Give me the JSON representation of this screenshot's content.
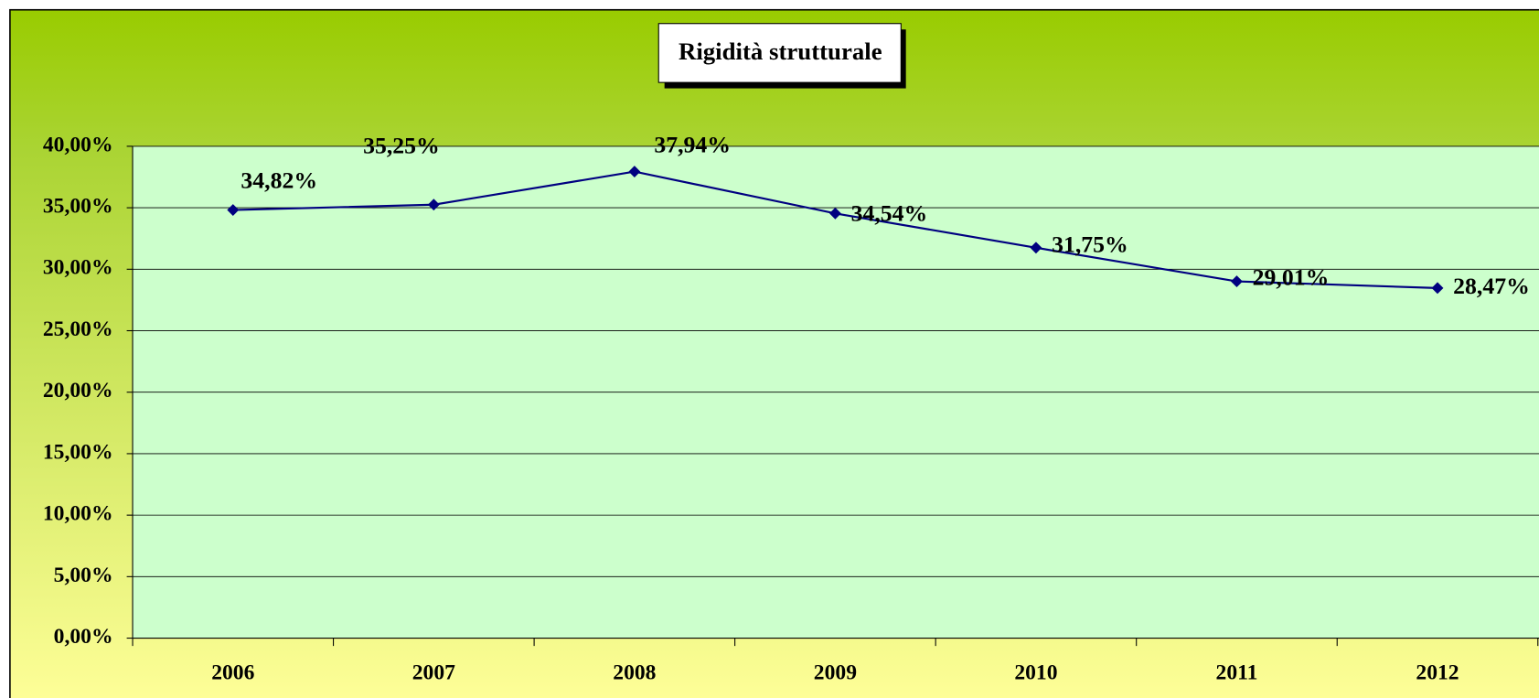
{
  "chart_data": {
    "type": "line",
    "title": "Rigidità strutturale",
    "categories": [
      "2006",
      "2007",
      "2008",
      "2009",
      "2010",
      "2011",
      "2012"
    ],
    "series": [
      {
        "name": "Rigidità strutturale",
        "color": "#000080",
        "values": [
          34.82,
          35.25,
          37.94,
          34.54,
          31.75,
          29.01,
          28.47
        ],
        "value_labels": [
          "34,82%",
          "35,25%",
          "37,94%",
          "34,54%",
          "31,75%",
          "29,01%",
          "28,47%"
        ]
      }
    ],
    "ylim": [
      0,
      40
    ],
    "yticks": [
      {
        "value": 0,
        "label": "0,00%"
      },
      {
        "value": 5,
        "label": "5,00%"
      },
      {
        "value": 10,
        "label": "10,00%"
      },
      {
        "value": 15,
        "label": "15,00%"
      },
      {
        "value": 20,
        "label": "20,00%"
      },
      {
        "value": 25,
        "label": "25,00%"
      },
      {
        "value": 30,
        "label": "30,00%"
      },
      {
        "value": 35,
        "label": "35,00%"
      },
      {
        "value": 40,
        "label": "40,00%"
      }
    ],
    "grid": true,
    "legend": false
  }
}
